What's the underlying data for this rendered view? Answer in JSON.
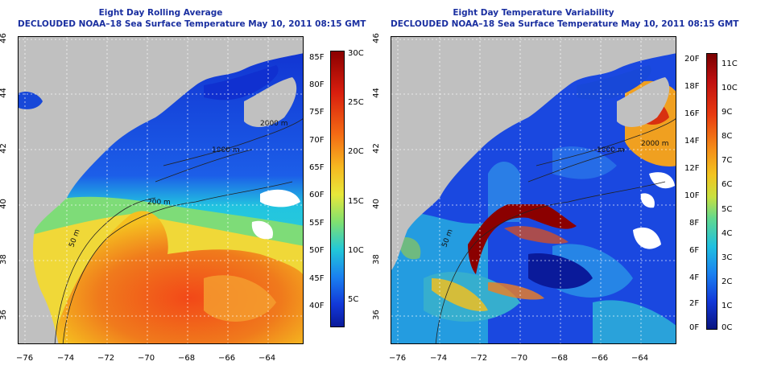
{
  "left_panel": {
    "title": "Eight Day Rolling Average",
    "subtitle": "DECLOUDED NOAA–18 Sea Surface Temperature May 10, 2011 08:15 GMT",
    "contour_labels": [
      "1000 m",
      "2000 m",
      "200 m",
      "50 m"
    ],
    "colorbar_left": [
      "85F",
      "80F",
      "75F",
      "70F",
      "65F",
      "60F",
      "55F",
      "50F",
      "45F",
      "40F"
    ],
    "colorbar_right": [
      "30C",
      "25C",
      "20C",
      "15C",
      "10C",
      "5C"
    ]
  },
  "right_panel": {
    "title": "Eight Day Temperature Variability",
    "subtitle": "DECLOUDED NOAA–18 Sea Surface Temperature May 10, 2011 08:15 GMT",
    "contour_labels": [
      "1000 m",
      "2000 m",
      "200 m",
      "50 m"
    ],
    "colorbar_left": [
      "20F",
      "18F",
      "16F",
      "14F",
      "12F",
      "10F",
      "8F",
      "6F",
      "4F",
      "2F",
      "0F"
    ],
    "colorbar_right": [
      "11C",
      "10C",
      "9C",
      "8C",
      "7C",
      "6C",
      "5C",
      "4C",
      "3C",
      "2C",
      "1C",
      "0C"
    ]
  },
  "axes": {
    "x_ticks": [
      "−76",
      "−74",
      "−72",
      "−70",
      "−68",
      "−66",
      "−64"
    ],
    "y_ticks": [
      "46",
      "44",
      "42",
      "40",
      "38",
      "36"
    ]
  },
  "colors": {
    "title_blue": "#1a2fa0",
    "land": "#c0c0c0",
    "cold": "#1537d6",
    "warm": "#f07a1c",
    "hot": "#8b0000"
  }
}
